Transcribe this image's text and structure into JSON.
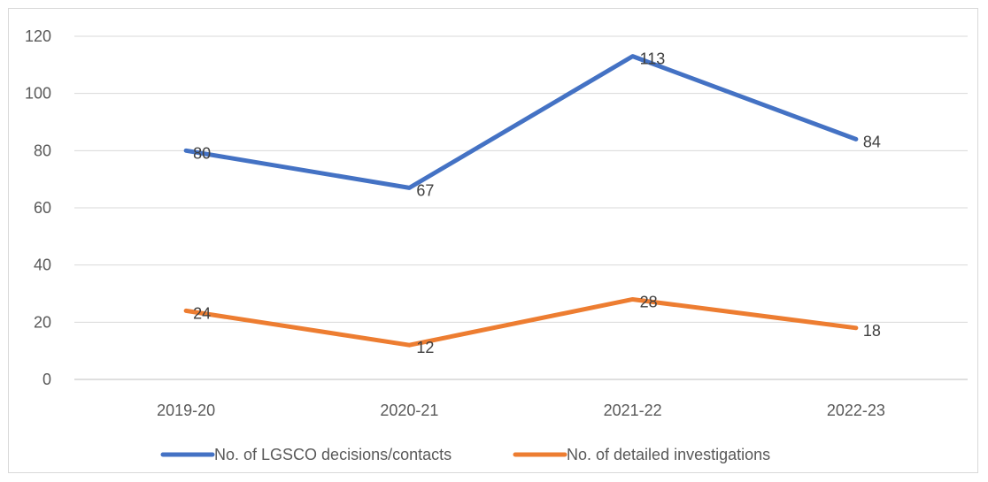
{
  "chart_data": {
    "type": "line",
    "categories": [
      "2019-20",
      "2020-21",
      "2021-22",
      "2022-23"
    ],
    "series": [
      {
        "name": "No. of LGSCO decisions/contacts",
        "values": [
          80,
          67,
          113,
          84
        ],
        "color": "#4472c4"
      },
      {
        "name": "No. of detailed investigations",
        "values": [
          24,
          12,
          28,
          18
        ],
        "color": "#ed7d31"
      }
    ],
    "y_ticks": [
      "0",
      "20",
      "40",
      "60",
      "80",
      "100",
      "120"
    ],
    "ylim": [
      0,
      120
    ],
    "grid": true,
    "legend_position": "bottom",
    "title": "",
    "xlabel": "",
    "ylabel": ""
  }
}
